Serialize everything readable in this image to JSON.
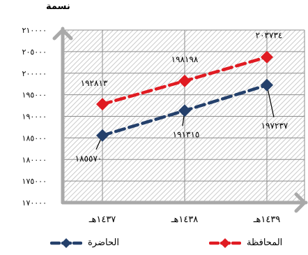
{
  "chart_data": {
    "type": "line",
    "unit_label": "نسمة",
    "categories": [
      "١٤٣٧هـ",
      "١٤٣٨هـ",
      "١٤٣٩هـ"
    ],
    "ylim": [
      170000,
      210000
    ],
    "yticks": [
      "١٧٠٠٠٠",
      "١٧٥٠٠٠",
      "١٨٠٠٠٠",
      "١٨٥٠٠٠",
      "١٩٠٠٠٠",
      "١٩٥٠٠٠",
      "٢٠٠٠٠٠",
      "٢٠٥٠٠٠",
      "٢١٠٠٠٠"
    ],
    "ytick_values": [
      170000,
      175000,
      180000,
      185000,
      190000,
      195000,
      200000,
      205000,
      210000
    ],
    "grid": true,
    "legend_position": "bottom",
    "series": [
      {
        "name": "المحافظة",
        "color": "#e01b22",
        "marker": "diamond",
        "values": [
          192813,
          198198,
          203734
        ],
        "labels": [
          "١٩٢٨١٣",
          "١٩٨١٩٨",
          "٢٠٣٧٣٤"
        ]
      },
      {
        "name": "الحاضرة",
        "color": "#24406b",
        "marker": "diamond",
        "values": [
          185570,
          191315,
          197237
        ],
        "labels": [
          "١٨٥٥٧٠",
          "١٩١٣١٥",
          "١٩٧٢٣٧"
        ]
      }
    ]
  }
}
